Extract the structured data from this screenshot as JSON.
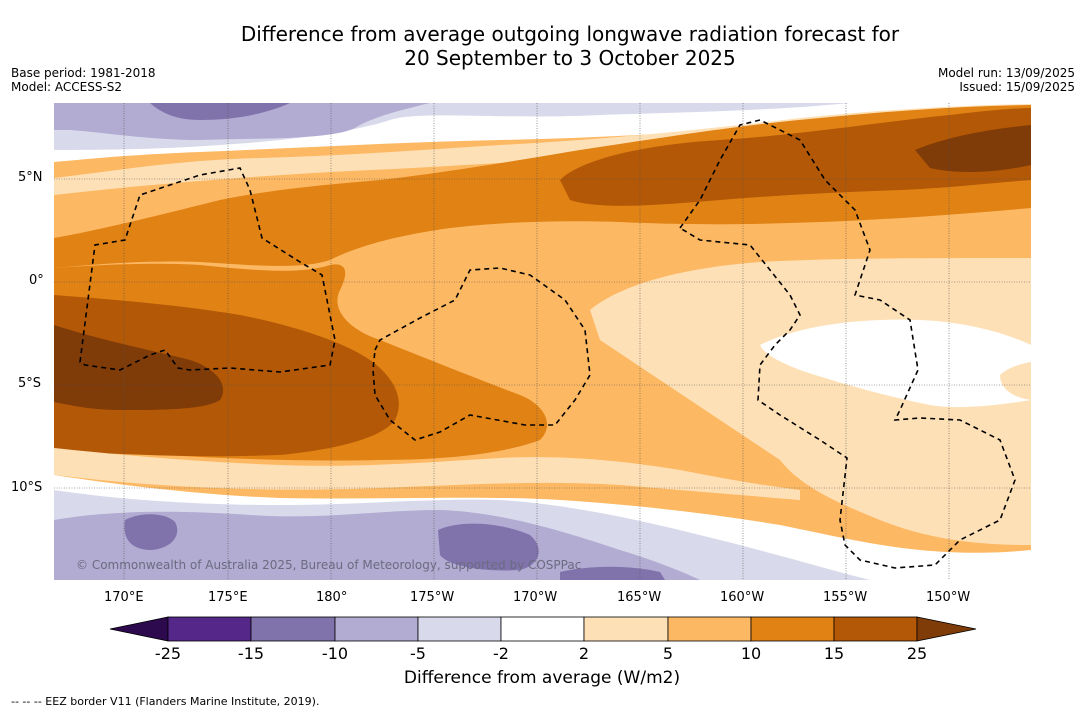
{
  "title_line1": "Difference from average outgoing longwave radiation forecast for",
  "title_line2": "20 September to 3 October 2025",
  "meta": {
    "base_period": "Base period: 1981-2018",
    "model": "Model: ACCESS-S2",
    "model_run": "Model run: 13/09/2025",
    "issued": "Issued: 15/09/2025"
  },
  "lat_ticks": [
    "5°N",
    "0°",
    "5°S",
    "10°S"
  ],
  "lon_ticks": [
    "170°E",
    "175°E",
    "180°",
    "175°W",
    "170°W",
    "165°W",
    "160°W",
    "155°W",
    "150°W"
  ],
  "colorbar": {
    "labels": [
      "-25",
      "-15",
      "-10",
      "-5",
      "-2",
      "2",
      "5",
      "10",
      "15",
      "25"
    ],
    "title": "Difference from average (W/m2)",
    "colors": [
      "#2d0a4e",
      "#542788",
      "#8073ac",
      "#b2abd2",
      "#d8daeb",
      "#ffffff",
      "#fee0b6",
      "#fdb863",
      "#e08214",
      "#b35806",
      "#7f3b08"
    ]
  },
  "copyright": "© Commonwealth of Australia 2025, Bureau of Meteorology, supported by COSPPac",
  "footer": "-- -- -- EEZ border V11 (Flanders Marine Institute, 2019)."
}
